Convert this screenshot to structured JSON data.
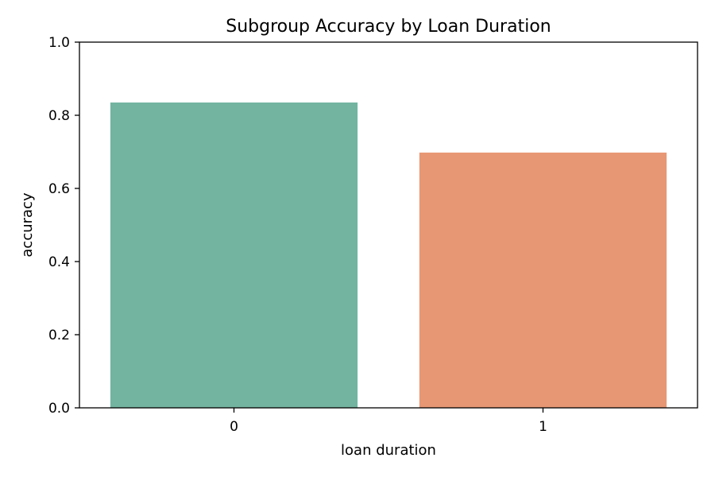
{
  "chart_data": {
    "type": "bar",
    "title": "Subgroup Accuracy by Loan Duration",
    "xlabel": "loan duration",
    "ylabel": "accuracy",
    "categories": [
      "0",
      "1"
    ],
    "values": [
      0.835,
      0.698
    ],
    "colors": [
      "#72b4a0",
      "#e89774"
    ],
    "ylim": [
      0,
      1
    ],
    "yticks": [
      "0.0",
      "0.2",
      "0.4",
      "0.6",
      "0.8",
      "1.0"
    ],
    "grid": false,
    "legend": "none"
  }
}
